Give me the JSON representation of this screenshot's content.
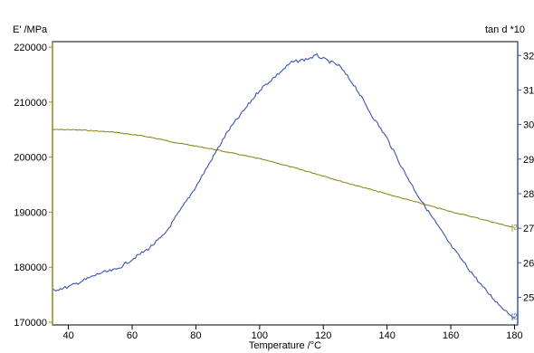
{
  "chart_data": {
    "type": "line",
    "xlabel": "Temperature /°C",
    "y_left_label": "E' /MPa",
    "y_right_label": "tan d *10",
    "xlim": [
      35,
      181
    ],
    "y_left_lim": [
      169500,
      221000
    ],
    "y_right_lim": [
      24.2,
      32.4
    ],
    "x_ticks": [
      40,
      60,
      80,
      100,
      120,
      140,
      160,
      180
    ],
    "y_left_ticks": [
      170000,
      180000,
      190000,
      200000,
      210000,
      220000
    ],
    "y_right_ticks": [
      25,
      26,
      27,
      28,
      29,
      30,
      31,
      32
    ],
    "grid": false,
    "series": [
      {
        "axis": "left",
        "color": "#8e8a1e",
        "marker_label": "[2",
        "x": [
          35,
          40,
          45,
          50,
          55,
          60,
          65,
          70,
          75,
          80,
          85,
          90,
          95,
          100,
          105,
          110,
          115,
          120,
          125,
          130,
          135,
          140,
          145,
          150,
          155,
          160,
          165,
          170,
          175,
          180
        ],
        "values": [
          205000,
          205000,
          204900,
          204700,
          204500,
          204100,
          203700,
          203100,
          202500,
          202000,
          201500,
          200900,
          200300,
          199700,
          199000,
          198200,
          197400,
          196600,
          195700,
          194900,
          194100,
          193300,
          192500,
          191700,
          190900,
          190100,
          189400,
          188700,
          187900,
          187200
        ]
      },
      {
        "axis": "right",
        "color": "#3a55b4",
        "marker_label": "[2",
        "x": [
          35,
          40,
          45,
          50,
          55,
          60,
          65,
          70,
          75,
          80,
          85,
          90,
          95,
          100,
          105,
          110,
          115,
          118,
          120,
          125,
          130,
          135,
          140,
          145,
          150,
          155,
          160,
          165,
          170,
          175,
          180
        ],
        "values": [
          25.2,
          25.3,
          25.5,
          25.7,
          25.8,
          26.1,
          26.4,
          26.8,
          27.5,
          28.2,
          29.0,
          29.8,
          30.4,
          31.0,
          31.4,
          31.8,
          31.9,
          32.0,
          31.9,
          31.7,
          31.1,
          30.3,
          29.6,
          28.7,
          27.9,
          27.2,
          26.5,
          25.9,
          25.3,
          24.8,
          24.4
        ]
      }
    ]
  }
}
